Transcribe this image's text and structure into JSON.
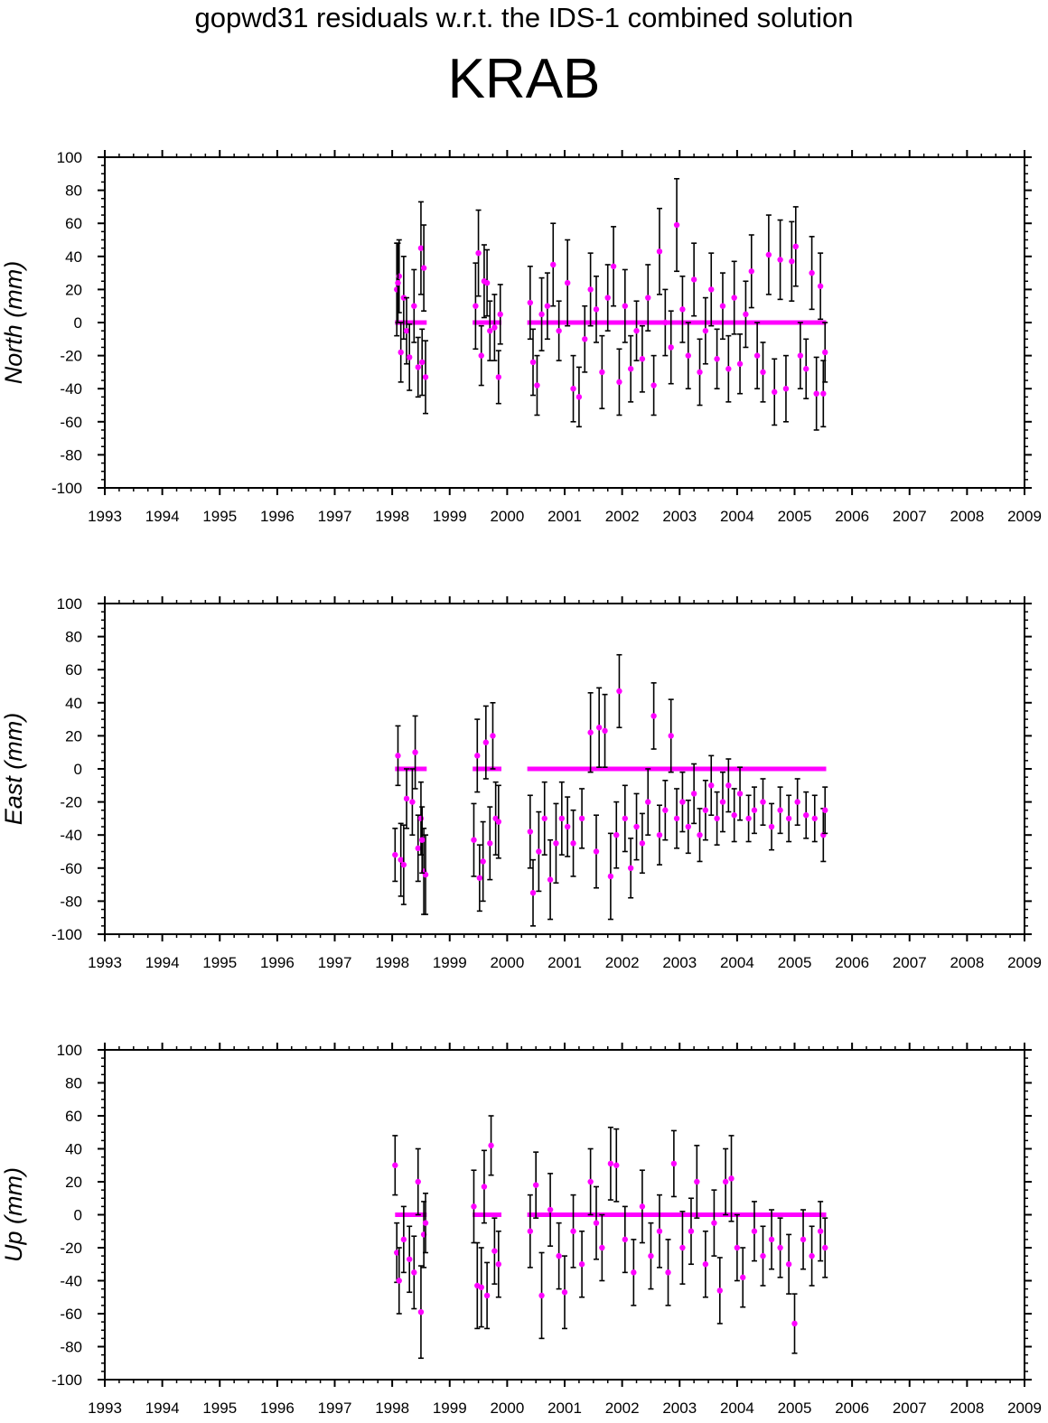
{
  "figure_title": "gopwd31 residuals w.r.t. the IDS-1 combined solution",
  "station": "KRAB",
  "colors": {
    "point": "#ff00ff",
    "errorbar": "#000000",
    "axis": "#000000"
  },
  "chart_data": [
    {
      "type": "scatter",
      "panel": "north",
      "ylabel": "North (mm)",
      "xlim": [
        1993,
        2009
      ],
      "ylim": [
        -100,
        100
      ],
      "xticks": [
        "1993",
        "1994",
        "1995",
        "1996",
        "1997",
        "1998",
        "1999",
        "2000",
        "2001",
        "2002",
        "2003",
        "2004",
        "2005",
        "2006",
        "2007",
        "2008",
        "2009"
      ],
      "yticks": [
        "-100",
        "-80",
        "-60",
        "-40",
        "-20",
        "0",
        "20",
        "40",
        "60",
        "80",
        "100"
      ],
      "error_bars": true,
      "segments": [
        {
          "start": 1998.05,
          "end": 1998.6,
          "value": 0
        },
        {
          "start": 1999.4,
          "end": 1999.9,
          "value": 0
        },
        {
          "start": 2000.35,
          "end": 2005.55,
          "value": 0
        }
      ],
      "points": [
        [
          1998.08,
          20,
          28
        ],
        [
          1998.12,
          28,
          22
        ],
        [
          1998.15,
          -18,
          18
        ],
        [
          1998.2,
          15,
          25
        ],
        [
          1998.25,
          -5,
          20
        ],
        [
          1998.3,
          -21,
          20
        ],
        [
          1998.38,
          10,
          22
        ],
        [
          1998.45,
          -27,
          18
        ],
        [
          1998.5,
          45,
          28
        ],
        [
          1998.55,
          33,
          26
        ],
        [
          1998.58,
          -33,
          22
        ],
        [
          1998.52,
          -24,
          20
        ],
        [
          1998.1,
          24,
          24
        ],
        [
          1999.45,
          10,
          26
        ],
        [
          1999.5,
          42,
          26
        ],
        [
          1999.55,
          -20,
          18
        ],
        [
          1999.6,
          25,
          22
        ],
        [
          1999.65,
          24,
          20
        ],
        [
          1999.7,
          -5,
          18
        ],
        [
          1999.78,
          -3,
          20
        ],
        [
          1999.85,
          -33,
          16
        ],
        [
          1999.88,
          5,
          18
        ],
        [
          2000.4,
          12,
          22
        ],
        [
          2000.45,
          -24,
          20
        ],
        [
          2000.52,
          -38,
          18
        ],
        [
          2000.6,
          5,
          22
        ],
        [
          2000.7,
          10,
          20
        ],
        [
          2000.8,
          35,
          25
        ],
        [
          2000.9,
          -5,
          18
        ],
        [
          2001.05,
          24,
          26
        ],
        [
          2001.15,
          -40,
          20
        ],
        [
          2001.25,
          -45,
          18
        ],
        [
          2001.35,
          -10,
          20
        ],
        [
          2001.45,
          20,
          22
        ],
        [
          2001.55,
          8,
          20
        ],
        [
          2001.65,
          -30,
          22
        ],
        [
          2001.75,
          15,
          20
        ],
        [
          2001.85,
          34,
          24
        ],
        [
          2001.95,
          -36,
          20
        ],
        [
          2002.05,
          10,
          22
        ],
        [
          2002.15,
          -28,
          20
        ],
        [
          2002.25,
          -5,
          18
        ],
        [
          2002.35,
          -22,
          20
        ],
        [
          2002.45,
          15,
          20
        ],
        [
          2002.55,
          -38,
          18
        ],
        [
          2002.65,
          43,
          26
        ],
        [
          2002.75,
          0,
          20
        ],
        [
          2002.85,
          -15,
          22
        ],
        [
          2002.95,
          59,
          28
        ],
        [
          2003.05,
          8,
          20
        ],
        [
          2003.15,
          -20,
          20
        ],
        [
          2003.25,
          26,
          22
        ],
        [
          2003.35,
          -30,
          20
        ],
        [
          2003.45,
          -5,
          20
        ],
        [
          2003.55,
          20,
          22
        ],
        [
          2003.65,
          -22,
          18
        ],
        [
          2003.75,
          10,
          20
        ],
        [
          2003.85,
          -28,
          20
        ],
        [
          2003.95,
          15,
          22
        ],
        [
          2004.05,
          -25,
          18
        ],
        [
          2004.15,
          5,
          20
        ],
        [
          2004.25,
          31,
          22
        ],
        [
          2004.35,
          -20,
          20
        ],
        [
          2004.45,
          -30,
          18
        ],
        [
          2004.55,
          41,
          24
        ],
        [
          2004.65,
          -42,
          20
        ],
        [
          2004.75,
          38,
          24
        ],
        [
          2004.85,
          -40,
          20
        ],
        [
          2004.95,
          37,
          24
        ],
        [
          2005.02,
          46,
          24
        ],
        [
          2005.1,
          -20,
          20
        ],
        [
          2005.2,
          -28,
          18
        ],
        [
          2005.3,
          30,
          22
        ],
        [
          2005.38,
          -43,
          22
        ],
        [
          2005.45,
          22,
          20
        ],
        [
          2005.5,
          -43,
          20
        ],
        [
          2005.53,
          -18,
          18
        ]
      ]
    },
    {
      "type": "scatter",
      "panel": "east",
      "ylabel": "East (mm)",
      "xlim": [
        1993,
        2009
      ],
      "ylim": [
        -100,
        100
      ],
      "xticks": [
        "1993",
        "1994",
        "1995",
        "1996",
        "1997",
        "1998",
        "1999",
        "2000",
        "2001",
        "2002",
        "2003",
        "2004",
        "2005",
        "2006",
        "2007",
        "2008",
        "2009"
      ],
      "yticks": [
        "-100",
        "-80",
        "-60",
        "-40",
        "-20",
        "0",
        "20",
        "40",
        "60",
        "80",
        "100"
      ],
      "error_bars": true,
      "segments": [
        {
          "start": 1998.05,
          "end": 1998.6,
          "value": 0
        },
        {
          "start": 1999.4,
          "end": 1999.9,
          "value": 0
        },
        {
          "start": 2000.35,
          "end": 2005.55,
          "value": 0
        }
      ],
      "points": [
        [
          1998.05,
          -52,
          16
        ],
        [
          1998.1,
          8,
          18
        ],
        [
          1998.15,
          -55,
          22
        ],
        [
          1998.2,
          -58,
          24
        ],
        [
          1998.25,
          -18,
          18
        ],
        [
          1998.35,
          -20,
          20
        ],
        [
          1998.4,
          10,
          22
        ],
        [
          1998.45,
          -48,
          20
        ],
        [
          1998.5,
          -30,
          22
        ],
        [
          1998.55,
          -62,
          26
        ],
        [
          1998.58,
          -64,
          24
        ],
        [
          1998.52,
          -43,
          20
        ],
        [
          1999.42,
          -43,
          22
        ],
        [
          1999.48,
          8,
          22
        ],
        [
          1999.52,
          -66,
          20
        ],
        [
          1999.58,
          -56,
          24
        ],
        [
          1999.63,
          16,
          22
        ],
        [
          1999.7,
          -45,
          22
        ],
        [
          1999.75,
          20,
          20
        ],
        [
          1999.8,
          -30,
          22
        ],
        [
          1999.85,
          -32,
          22
        ],
        [
          2000.4,
          -38,
          22
        ],
        [
          2000.45,
          -75,
          20
        ],
        [
          2000.55,
          -50,
          24
        ],
        [
          2000.65,
          -30,
          22
        ],
        [
          2000.75,
          -67,
          24
        ],
        [
          2000.85,
          -45,
          24
        ],
        [
          2000.95,
          -30,
          22
        ],
        [
          2001.05,
          -35,
          18
        ],
        [
          2001.15,
          -45,
          20
        ],
        [
          2001.3,
          -30,
          18
        ],
        [
          2001.45,
          22,
          24
        ],
        [
          2001.55,
          -50,
          22
        ],
        [
          2001.6,
          25,
          24
        ],
        [
          2001.7,
          23,
          22
        ],
        [
          2001.8,
          -65,
          26
        ],
        [
          2001.9,
          -40,
          20
        ],
        [
          2001.95,
          47,
          22
        ],
        [
          2002.05,
          -30,
          20
        ],
        [
          2002.15,
          -60,
          18
        ],
        [
          2002.25,
          -35,
          20
        ],
        [
          2002.35,
          -45,
          18
        ],
        [
          2002.45,
          -20,
          20
        ],
        [
          2002.55,
          32,
          20
        ],
        [
          2002.65,
          -40,
          18
        ],
        [
          2002.75,
          -25,
          18
        ],
        [
          2002.85,
          20,
          22
        ],
        [
          2002.95,
          -30,
          18
        ],
        [
          2003.05,
          -20,
          18
        ],
        [
          2003.15,
          -35,
          16
        ],
        [
          2003.25,
          -15,
          18
        ],
        [
          2003.35,
          -40,
          16
        ],
        [
          2003.45,
          -25,
          18
        ],
        [
          2003.55,
          -10,
          18
        ],
        [
          2003.65,
          -30,
          16
        ],
        [
          2003.75,
          -20,
          18
        ],
        [
          2003.85,
          -10,
          16
        ],
        [
          2003.95,
          -28,
          16
        ],
        [
          2004.05,
          -15,
          16
        ],
        [
          2004.2,
          -30,
          14
        ],
        [
          2004.3,
          -25,
          14
        ],
        [
          2004.45,
          -20,
          14
        ],
        [
          2004.6,
          -35,
          14
        ],
        [
          2004.75,
          -25,
          14
        ],
        [
          2004.9,
          -30,
          14
        ],
        [
          2005.05,
          -20,
          14
        ],
        [
          2005.2,
          -28,
          14
        ],
        [
          2005.35,
          -30,
          14
        ],
        [
          2005.5,
          -40,
          16
        ],
        [
          2005.53,
          -25,
          14
        ]
      ]
    },
    {
      "type": "scatter",
      "panel": "up",
      "ylabel": "Up (mm)",
      "xlim": [
        1993,
        2009
      ],
      "ylim": [
        -100,
        100
      ],
      "xticks": [
        "1993",
        "1994",
        "1995",
        "1996",
        "1997",
        "1998",
        "1999",
        "2000",
        "2001",
        "2002",
        "2003",
        "2004",
        "2005",
        "2006",
        "2007",
        "2008",
        "2009"
      ],
      "yticks": [
        "-100",
        "-80",
        "-60",
        "-40",
        "-20",
        "0",
        "20",
        "40",
        "60",
        "80",
        "100"
      ],
      "error_bars": true,
      "segments": [
        {
          "start": 1998.05,
          "end": 1998.6,
          "value": 0
        },
        {
          "start": 1999.4,
          "end": 1999.9,
          "value": 0
        },
        {
          "start": 2000.35,
          "end": 2005.55,
          "value": 0
        }
      ],
      "points": [
        [
          1998.05,
          30,
          18
        ],
        [
          1998.08,
          -23,
          18
        ],
        [
          1998.12,
          -40,
          20
        ],
        [
          1998.2,
          -15,
          20
        ],
        [
          1998.3,
          -27,
          20
        ],
        [
          1998.38,
          -35,
          22
        ],
        [
          1998.45,
          20,
          20
        ],
        [
          1998.5,
          -59,
          28
        ],
        [
          1998.55,
          -12,
          20
        ],
        [
          1998.58,
          -5,
          18
        ],
        [
          1999.42,
          5,
          22
        ],
        [
          1999.48,
          -43,
          26
        ],
        [
          1999.55,
          -44,
          24
        ],
        [
          1999.6,
          17,
          22
        ],
        [
          1999.65,
          -49,
          20
        ],
        [
          1999.72,
          42,
          18
        ],
        [
          1999.78,
          -22,
          20
        ],
        [
          1999.85,
          -30,
          20
        ],
        [
          2000.4,
          -10,
          22
        ],
        [
          2000.5,
          18,
          20
        ],
        [
          2000.6,
          -49,
          26
        ],
        [
          2000.75,
          3,
          22
        ],
        [
          2000.9,
          -25,
          20
        ],
        [
          2001.0,
          -47,
          22
        ],
        [
          2001.15,
          -10,
          22
        ],
        [
          2001.3,
          -30,
          20
        ],
        [
          2001.45,
          20,
          20
        ],
        [
          2001.55,
          -5,
          22
        ],
        [
          2001.65,
          -20,
          20
        ],
        [
          2001.8,
          31,
          22
        ],
        [
          2001.9,
          30,
          22
        ],
        [
          2002.05,
          -15,
          20
        ],
        [
          2002.2,
          -35,
          20
        ],
        [
          2002.35,
          5,
          22
        ],
        [
          2002.5,
          -25,
          20
        ],
        [
          2002.65,
          -10,
          22
        ],
        [
          2002.8,
          -35,
          20
        ],
        [
          2002.9,
          31,
          20
        ],
        [
          2003.05,
          -20,
          22
        ],
        [
          2003.2,
          -10,
          20
        ],
        [
          2003.3,
          20,
          22
        ],
        [
          2003.45,
          -30,
          20
        ],
        [
          2003.6,
          -5,
          20
        ],
        [
          2003.7,
          -46,
          20
        ],
        [
          2003.8,
          20,
          20
        ],
        [
          2003.9,
          22,
          26
        ],
        [
          2004.0,
          -20,
          20
        ],
        [
          2004.1,
          -38,
          18
        ],
        [
          2004.3,
          -10,
          18
        ],
        [
          2004.45,
          -25,
          18
        ],
        [
          2004.6,
          -15,
          18
        ],
        [
          2004.75,
          -20,
          18
        ],
        [
          2004.9,
          -30,
          18
        ],
        [
          2005.0,
          -66,
          18
        ],
        [
          2005.15,
          -15,
          18
        ],
        [
          2005.3,
          -25,
          18
        ],
        [
          2005.45,
          -10,
          18
        ],
        [
          2005.53,
          -20,
          18
        ]
      ]
    }
  ]
}
